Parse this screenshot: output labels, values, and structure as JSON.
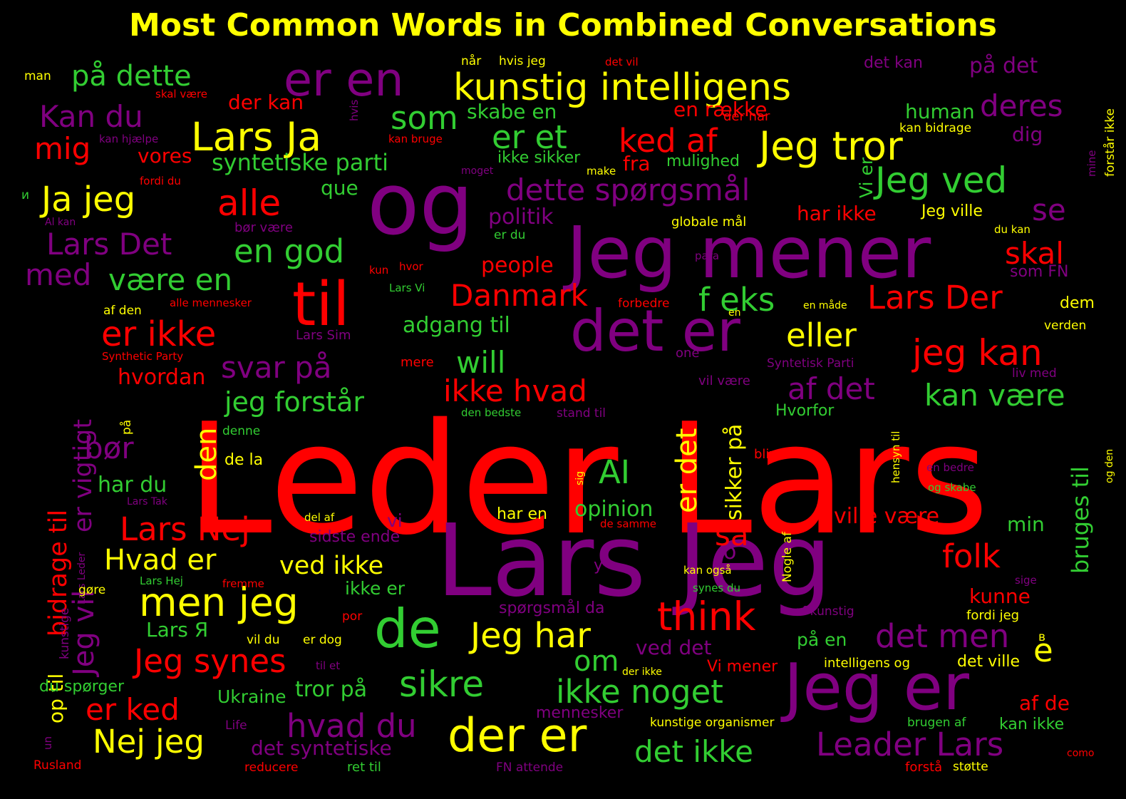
{
  "title": "Most Common Words in Combined Conversations",
  "colors": {
    "background": "#000000",
    "title": "#ffff00",
    "red": "#ff0000",
    "purple": "#800080",
    "green": "#32cd32",
    "yellow": "#ffff00"
  },
  "words": [
    {
      "text": "Leder Lars",
      "color": "red"
    },
    {
      "text": "Lars Jeg",
      "color": "purple"
    },
    {
      "text": "og",
      "color": "purple"
    },
    {
      "text": "Jeg mener",
      "color": "purple"
    },
    {
      "text": "Jeg er",
      "color": "purple"
    },
    {
      "text": "det er",
      "color": "purple"
    },
    {
      "text": "til",
      "color": "red"
    },
    {
      "text": "er en",
      "color": "purple"
    },
    {
      "text": "kunstig intelligens",
      "color": "yellow"
    },
    {
      "text": "de",
      "color": "green"
    },
    {
      "text": "der er",
      "color": "yellow"
    },
    {
      "text": "men jeg",
      "color": "yellow"
    },
    {
      "text": "Lars Ja",
      "color": "yellow"
    },
    {
      "text": "Jeg tror",
      "color": "yellow"
    },
    {
      "text": "er ikke",
      "color": "red"
    },
    {
      "text": "think",
      "color": "red"
    },
    {
      "text": "Jeg har",
      "color": "yellow"
    },
    {
      "text": "Jeg ved",
      "color": "green"
    },
    {
      "text": "jeg kan",
      "color": "red"
    },
    {
      "text": "Leader Lars",
      "color": "purple"
    },
    {
      "text": "Jeg vil",
      "color": "purple"
    },
    {
      "text": "Ja jeg",
      "color": "yellow"
    },
    {
      "text": "alle",
      "color": "red"
    },
    {
      "text": "Nej jeg",
      "color": "yellow"
    },
    {
      "text": "sikre",
      "color": "green"
    },
    {
      "text": "Jeg synes",
      "color": "red"
    },
    {
      "text": "ikke noget",
      "color": "green"
    },
    {
      "text": "det ikke",
      "color": "green"
    },
    {
      "text": "hvad du",
      "color": "purple"
    },
    {
      "text": "som",
      "color": "green"
    },
    {
      "text": "er et",
      "color": "green"
    },
    {
      "text": "ked af",
      "color": "red"
    },
    {
      "text": "på dette",
      "color": "green"
    },
    {
      "text": "dette spørgsmål",
      "color": "purple"
    },
    {
      "text": "Lars Nej",
      "color": "red"
    },
    {
      "text": "Hvad er",
      "color": "yellow"
    },
    {
      "text": "det men",
      "color": "purple"
    },
    {
      "text": "er ked",
      "color": "red"
    },
    {
      "text": "ikke hvad",
      "color": "red"
    },
    {
      "text": "svar på",
      "color": "purple"
    },
    {
      "text": "bidrage til",
      "color": "red"
    },
    {
      "text": "er vigtigt",
      "color": "purple"
    },
    {
      "text": "er det",
      "color": "yellow"
    },
    {
      "text": "AI",
      "color": "green"
    },
    {
      "text": "Danmark",
      "color": "red"
    },
    {
      "text": "eller",
      "color": "yellow"
    },
    {
      "text": "Lars Der",
      "color": "red"
    },
    {
      "text": "Kan du",
      "color": "purple"
    },
    {
      "text": "deres",
      "color": "purple"
    },
    {
      "text": "mig",
      "color": "red"
    },
    {
      "text": "Lars Det",
      "color": "purple"
    },
    {
      "text": "en god",
      "color": "green"
    },
    {
      "text": "skal",
      "color": "red"
    },
    {
      "text": "med",
      "color": "purple"
    },
    {
      "text": "være en",
      "color": "green"
    },
    {
      "text": "will",
      "color": "green"
    },
    {
      "text": "af det",
      "color": "purple"
    },
    {
      "text": "kan være",
      "color": "green"
    },
    {
      "text": "jeg forstår",
      "color": "green"
    },
    {
      "text": "bruges til",
      "color": "green"
    },
    {
      "text": "folk",
      "color": "red"
    },
    {
      "text": "se",
      "color": "purple"
    },
    {
      "text": "f eks",
      "color": "green"
    },
    {
      "text": "den",
      "color": "yellow"
    },
    {
      "text": "bør",
      "color": "purple"
    },
    {
      "text": "så",
      "color": "red"
    },
    {
      "text": "om",
      "color": "green"
    },
    {
      "text": "e",
      "color": "yellow"
    },
    {
      "text": "ved ikke",
      "color": "yellow"
    },
    {
      "text": "sikker på",
      "color": "yellow"
    },
    {
      "text": "opinion",
      "color": "green"
    },
    {
      "text": "ville være",
      "color": "red"
    },
    {
      "text": "Vi er",
      "color": "green"
    },
    {
      "text": "skabe en",
      "color": "green"
    },
    {
      "text": "syntetiske parti",
      "color": "green"
    },
    {
      "text": "det syntetiske",
      "color": "purple"
    },
    {
      "text": "ved det",
      "color": "purple"
    },
    {
      "text": "en række",
      "color": "red"
    },
    {
      "text": "human",
      "color": "green"
    },
    {
      "text": "dig",
      "color": "purple"
    },
    {
      "text": "der kan",
      "color": "red"
    },
    {
      "text": "vores",
      "color": "red"
    },
    {
      "text": "fra",
      "color": "red"
    },
    {
      "text": "politik",
      "color": "purple"
    },
    {
      "text": "har ikke",
      "color": "red"
    },
    {
      "text": "people",
      "color": "red"
    },
    {
      "text": "adgang til",
      "color": "green"
    },
    {
      "text": "hvordan",
      "color": "red"
    },
    {
      "text": "har du",
      "color": "green"
    },
    {
      "text": "tror på",
      "color": "green"
    },
    {
      "text": "Ukraine",
      "color": "green"
    },
    {
      "text": "op til",
      "color": "yellow"
    },
    {
      "text": "kunne",
      "color": "red"
    },
    {
      "text": "min",
      "color": "green"
    },
    {
      "text": "af de",
      "color": "red"
    },
    {
      "text": "det vil",
      "color": "red"
    },
    {
      "text": "på det",
      "color": "purple"
    },
    {
      "text": "det kan",
      "color": "purple"
    },
    {
      "text": "ikke er",
      "color": "green"
    },
    {
      "text": "que",
      "color": "green"
    },
    {
      "text": "Hvorfor",
      "color": "green"
    },
    {
      "text": "vi",
      "color": "purple"
    },
    {
      "text": "på en",
      "color": "green"
    },
    {
      "text": "mulighed",
      "color": "green"
    },
    {
      "text": "Jeg ville",
      "color": "yellow"
    },
    {
      "text": "ikke sikker",
      "color": "green"
    },
    {
      "text": "kan ikke",
      "color": "green"
    },
    {
      "text": "dem",
      "color": "yellow"
    },
    {
      "text": "der har",
      "color": "red"
    },
    {
      "text": "globale mål",
      "color": "yellow"
    },
    {
      "text": "kan bidrage",
      "color": "yellow"
    },
    {
      "text": "forstår ikke",
      "color": "yellow"
    },
    {
      "text": "som FN",
      "color": "purple"
    },
    {
      "text": "det ville",
      "color": "yellow"
    },
    {
      "text": "intelligens og",
      "color": "yellow"
    },
    {
      "text": "kunstige organismer",
      "color": "yellow"
    },
    {
      "text": "fordi jeg",
      "color": "yellow"
    },
    {
      "text": "spørgsmål da",
      "color": "purple"
    },
    {
      "text": "mennesker",
      "color": "purple"
    },
    {
      "text": "du spørger",
      "color": "green"
    },
    {
      "text": "Lars Я",
      "color": "green"
    },
    {
      "text": "verden",
      "color": "yellow"
    },
    {
      "text": "Vi mener",
      "color": "red"
    },
    {
      "text": "har en",
      "color": "yellow"
    },
    {
      "text": "bliver",
      "color": "red"
    },
    {
      "text": "de la",
      "color": "yellow"
    },
    {
      "text": "sidste ende",
      "color": "purple"
    },
    {
      "text": "del af",
      "color": "yellow"
    },
    {
      "text": "når",
      "color": "yellow"
    },
    {
      "text": "hvis jeg",
      "color": "yellow"
    },
    {
      "text": "man",
      "color": "yellow"
    },
    {
      "text": "skal være",
      "color": "red"
    },
    {
      "text": "kan hjælpe",
      "color": "purple"
    },
    {
      "text": "kan bruge",
      "color": "red"
    },
    {
      "text": "hvis",
      "color": "purple"
    },
    {
      "text": "moget",
      "color": "purple"
    },
    {
      "text": "make",
      "color": "yellow"
    },
    {
      "text": "fordi du",
      "color": "red"
    },
    {
      "text": "и",
      "color": "green"
    },
    {
      "text": "Al kan",
      "color": "purple"
    },
    {
      "text": "bør være",
      "color": "purple"
    },
    {
      "text": "er du",
      "color": "green"
    },
    {
      "text": "du kan",
      "color": "yellow"
    },
    {
      "text": "para",
      "color": "purple"
    },
    {
      "text": "kun",
      "color": "red"
    },
    {
      "text": "hvor",
      "color": "red"
    },
    {
      "text": "Lars Vi",
      "color": "green"
    },
    {
      "text": "af den",
      "color": "yellow"
    },
    {
      "text": "alle mennesker",
      "color": "red"
    },
    {
      "text": "forbedre",
      "color": "red"
    },
    {
      "text": "en",
      "color": "yellow"
    },
    {
      "text": "en måde",
      "color": "yellow"
    },
    {
      "text": "Lars Sim",
      "color": "purple"
    },
    {
      "text": "one",
      "color": "purple"
    },
    {
      "text": "Synthetic Party",
      "color": "red"
    },
    {
      "text": "Syntetisk Parti",
      "color": "purple"
    },
    {
      "text": "mere",
      "color": "red"
    },
    {
      "text": "vil være",
      "color": "purple"
    },
    {
      "text": "liv med",
      "color": "purple"
    },
    {
      "text": "mine",
      "color": "purple"
    },
    {
      "text": "på",
      "color": "yellow"
    },
    {
      "text": "den bedste",
      "color": "green"
    },
    {
      "text": "stand til",
      "color": "purple"
    },
    {
      "text": "denne",
      "color": "green"
    },
    {
      "text": "hensyn til",
      "color": "yellow"
    },
    {
      "text": "en bedre",
      "color": "purple"
    },
    {
      "text": "og skabe",
      "color": "green"
    },
    {
      "text": "og den",
      "color": "yellow"
    },
    {
      "text": "sig",
      "color": "yellow"
    },
    {
      "text": "Lars Tak",
      "color": "purple"
    },
    {
      "text": "de samme",
      "color": "red"
    },
    {
      "text": "Nogle af",
      "color": "yellow"
    },
    {
      "text": "kan også",
      "color": "yellow"
    },
    {
      "text": "sige",
      "color": "purple"
    },
    {
      "text": "o",
      "color": "purple"
    },
    {
      "text": "y",
      "color": "purple"
    },
    {
      "text": "kunstige",
      "color": "purple"
    },
    {
      "text": "Lars Leder",
      "color": "purple"
    },
    {
      "text": "gøre",
      "color": "yellow"
    },
    {
      "text": "Lars Hej",
      "color": "green"
    },
    {
      "text": "fremme",
      "color": "red"
    },
    {
      "text": "synes du",
      "color": "green"
    },
    {
      "text": "af kunstig",
      "color": "purple"
    },
    {
      "text": "por",
      "color": "red"
    },
    {
      "text": "vil du",
      "color": "yellow"
    },
    {
      "text": "er dog",
      "color": "yellow"
    },
    {
      "text": "til et",
      "color": "purple"
    },
    {
      "text": "der ikke",
      "color": "yellow"
    },
    {
      "text": "в",
      "color": "yellow"
    },
    {
      "text": "Life",
      "color": "purple"
    },
    {
      "text": "brugen af",
      "color": "green"
    },
    {
      "text": "como",
      "color": "red"
    },
    {
      "text": "Rusland",
      "color": "red"
    },
    {
      "text": "reducere",
      "color": "red"
    },
    {
      "text": "ret til",
      "color": "green"
    },
    {
      "text": "FN attende",
      "color": "purple"
    },
    {
      "text": "forstå",
      "color": "red"
    },
    {
      "text": "støtte",
      "color": "yellow"
    },
    {
      "text": "un",
      "color": "purple"
    }
  ]
}
